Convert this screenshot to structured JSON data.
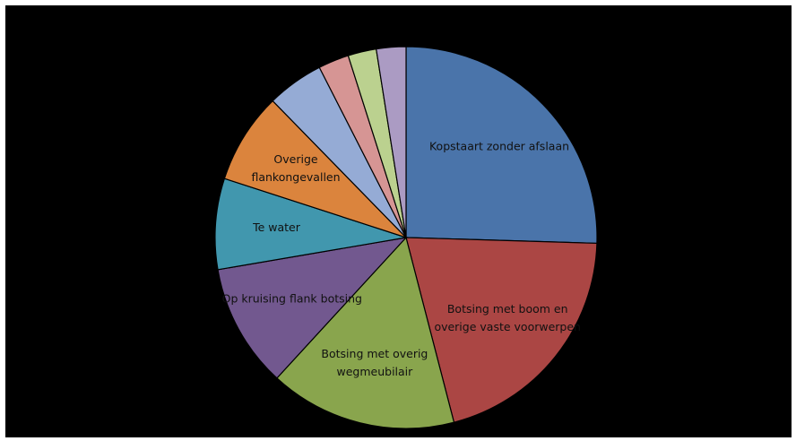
{
  "chart_data": {
    "type": "pie",
    "title": "",
    "categories": [
      "Kopstaart zonder afslaan",
      "Botsing met boom en overige vaste voorwerpen",
      "Botsing met overig wegmeubilair",
      "Op kruising flank botsing",
      "Te water",
      "Overige flankongevallen",
      "",
      "",
      "",
      ""
    ],
    "display_labels": [
      [
        "Kopstaart zonder afslaan"
      ],
      [
        "Botsing met boom en",
        "overige vaste voorwerpen"
      ],
      [
        "Botsing met overig",
        "wegmeubilair"
      ],
      [
        "Op kruising flank botsing"
      ],
      [
        "Te water"
      ],
      [
        "Overige",
        "flankongevallen"
      ],
      [],
      [],
      [],
      []
    ],
    "values": [
      26.5,
      21.3,
      16.5,
      10.9,
      8.0,
      8.0,
      5.0,
      2.7,
      2.5,
      2.6
    ],
    "colors": [
      "#4a74aa",
      "#ab4644",
      "#89a54d",
      "#72588f",
      "#4197ae",
      "#db843d",
      "#95abd5",
      "#d69594",
      "#bbd18f",
      "#ab9bc3"
    ],
    "legend": "none",
    "data_labels": "inside"
  }
}
